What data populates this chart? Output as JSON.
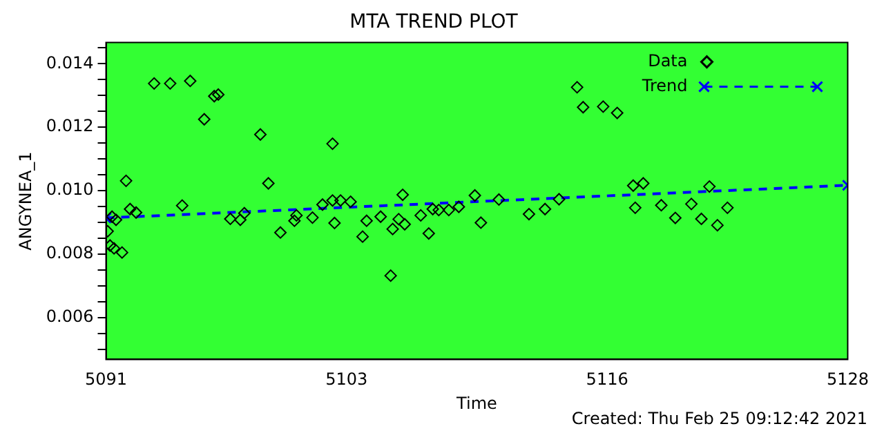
{
  "chart_data": {
    "type": "scatter",
    "title": "MTA TREND PLOT",
    "xlabel": "Time",
    "ylabel": "ANGYNEA_1",
    "annotations": [
      "Created: Thu Feb 25 09:12:42 2021"
    ],
    "xlim": [
      5091,
      5128
    ],
    "xticks": [
      5091,
      5103,
      5116,
      5128
    ],
    "ylim": [
      0.00468,
      0.01467
    ],
    "yticks": [
      {
        "value": 0.005,
        "label": null
      },
      {
        "value": 0.0055,
        "label": null
      },
      {
        "value": 0.006,
        "label": "0.006"
      },
      {
        "value": 0.0065,
        "label": null
      },
      {
        "value": 0.007,
        "label": null
      },
      {
        "value": 0.0075,
        "label": null
      },
      {
        "value": 0.008,
        "label": "0.008"
      },
      {
        "value": 0.0085,
        "label": null
      },
      {
        "value": 0.009,
        "label": null
      },
      {
        "value": 0.0095,
        "label": null
      },
      {
        "value": 0.01,
        "label": "0.010"
      },
      {
        "value": 0.0105,
        "label": null
      },
      {
        "value": 0.011,
        "label": null
      },
      {
        "value": 0.0115,
        "label": null
      },
      {
        "value": 0.012,
        "label": "0.012"
      },
      {
        "value": 0.0125,
        "label": null
      },
      {
        "value": 0.013,
        "label": null
      },
      {
        "value": 0.0135,
        "label": null
      },
      {
        "value": 0.014,
        "label": "0.014"
      },
      {
        "value": 0.0145,
        "label": null
      }
    ],
    "grid": false,
    "legend": "top right",
    "series": [
      {
        "name": "Data",
        "color": "#000000",
        "marker": "diamond",
        "x": [
          5091.08,
          5091.2,
          5091.3,
          5091.4,
          5091.5,
          5091.8,
          5092.0,
          5092.2,
          5092.5,
          5093.4,
          5094.2,
          5094.8,
          5095.2,
          5095.9,
          5096.4,
          5096.6,
          5097.2,
          5097.7,
          5097.9,
          5098.7,
          5099.1,
          5099.7,
          5100.4,
          5100.5,
          5101.3,
          5101.8,
          5102.3,
          5102.3,
          5102.4,
          5102.7,
          5103.2,
          5103.8,
          5104.0,
          5104.7,
          5105.2,
          5105.3,
          5105.6,
          5105.8,
          5105.9,
          5106.7,
          5107.1,
          5107.3,
          5107.6,
          5108.1,
          5108.6,
          5109.4,
          5109.7,
          5110.6,
          5112.1,
          5112.9,
          5113.6,
          5114.5,
          5114.8,
          5115.8,
          5116.5,
          5117.3,
          5117.4,
          5117.8,
          5118.7,
          5119.4,
          5120.2,
          5120.7,
          5121.1,
          5121.5,
          5122.0
        ],
        "values": [
          0.00872,
          0.00827,
          0.00918,
          0.00818,
          0.00908,
          0.00805,
          0.01031,
          0.00942,
          0.00931,
          0.01338,
          0.01338,
          0.00953,
          0.01346,
          0.01225,
          0.01298,
          0.01303,
          0.00911,
          0.00908,
          0.00929,
          0.01177,
          0.01023,
          0.00868,
          0.00905,
          0.00922,
          0.00915,
          0.00956,
          0.01148,
          0.00969,
          0.00898,
          0.00969,
          0.00965,
          0.00855,
          0.00905,
          0.00918,
          0.00732,
          0.00879,
          0.0091,
          0.00987,
          0.00894,
          0.00922,
          0.00865,
          0.00942,
          0.00939,
          0.00939,
          0.00949,
          0.00985,
          0.00899,
          0.00972,
          0.00926,
          0.00942,
          0.00973,
          0.01326,
          0.01263,
          0.01265,
          0.01245,
          0.01016,
          0.00946,
          0.01023,
          0.00954,
          0.00914,
          0.00958,
          0.00911,
          0.01013,
          0.00891,
          0.00946
        ]
      },
      {
        "name": "Trend",
        "type": "line",
        "color": "#0000ff",
        "marker": "cross",
        "line_style": "dashed",
        "x": [
          5091,
          5128
        ],
        "values": [
          0.00914,
          0.01017
        ]
      }
    ]
  }
}
